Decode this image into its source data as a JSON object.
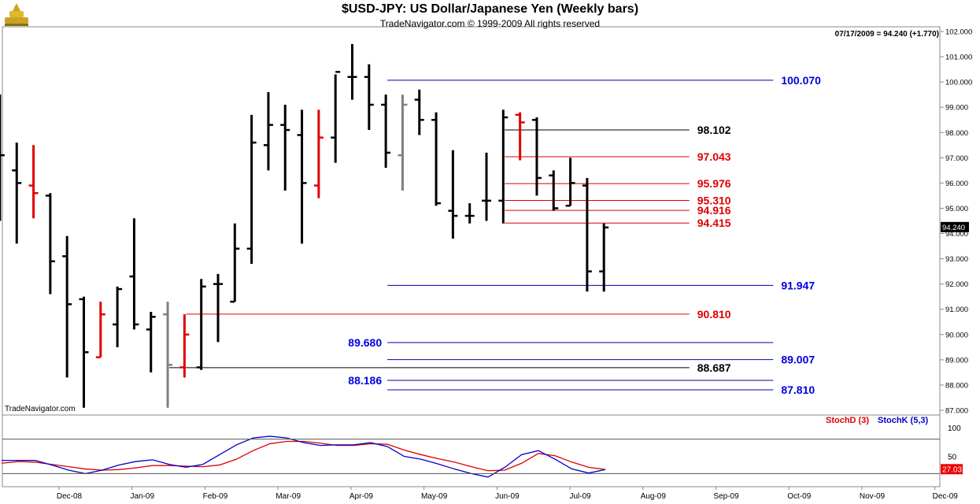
{
  "chart_data": [
    {
      "type": "ohlc",
      "title": "$USD-JPY:  US Dollar/Japanese Yen  (Weekly bars)",
      "subtitle": "TradeNavigator.com © 1999-2009 All rights reserved",
      "last_quote_text": "07/17/2009 = 94.240 (+1.770)",
      "last_price_label": "94.240",
      "watermark": "TradeNavigator.com",
      "ylim": [
        86.8,
        102.2
      ],
      "y_ticks": [
        "87.000",
        "88.000",
        "89.000",
        "90.000",
        "91.000",
        "92.000",
        "93.000",
        "94.000",
        "95.000",
        "96.000",
        "97.000",
        "98.000",
        "99.000",
        "100.000",
        "101.000",
        "102.000"
      ],
      "x_ticks": [
        "Dec-08",
        "Jan-09",
        "Feb-09",
        "Mar-09",
        "Apr-09",
        "May-09",
        "Jun-09",
        "Jul-09",
        "Aug-09",
        "Sep-09",
        "Oct-09",
        "Nov-09",
        "Dec-09"
      ],
      "colors": {
        "up": "#000000",
        "down_red": "#e00000",
        "gray": "#808080",
        "blue_level": "#0000aa",
        "red_level": "#dd0000",
        "black_level": "#000000"
      },
      "bars": [
        {
          "date": "2008-11-07",
          "o": 98.2,
          "h": 99.5,
          "l": 94.5,
          "c": 97.1,
          "color": "black"
        },
        {
          "date": "2008-11-14",
          "o": 96.5,
          "h": 97.6,
          "l": 93.6,
          "c": 96.0,
          "color": "black"
        },
        {
          "date": "2008-11-21",
          "o": 95.9,
          "h": 97.5,
          "l": 94.6,
          "c": 95.6,
          "color": "red"
        },
        {
          "date": "2008-11-28",
          "o": 95.5,
          "h": 95.6,
          "l": 91.6,
          "c": 92.9,
          "color": "black"
        },
        {
          "date": "2008-12-05",
          "o": 93.1,
          "h": 93.9,
          "l": 88.3,
          "c": 91.2,
          "color": "black"
        },
        {
          "date": "2008-12-12",
          "o": 91.4,
          "h": 91.5,
          "l": 87.1,
          "c": 89.3,
          "color": "black"
        },
        {
          "date": "2008-12-19",
          "o": 89.1,
          "h": 91.3,
          "l": 89.1,
          "c": 90.8,
          "color": "red"
        },
        {
          "date": "2008-12-26",
          "o": 90.4,
          "h": 91.9,
          "l": 89.5,
          "c": 91.8,
          "color": "black"
        },
        {
          "date": "2009-01-02",
          "o": 92.3,
          "h": 94.6,
          "l": 90.2,
          "c": 90.4,
          "color": "black"
        },
        {
          "date": "2009-01-09",
          "o": 90.2,
          "h": 90.9,
          "l": 88.5,
          "c": 90.7,
          "color": "black"
        },
        {
          "date": "2009-01-16",
          "o": 90.8,
          "h": 91.3,
          "l": 87.1,
          "c": 88.8,
          "color": "gray"
        },
        {
          "date": "2009-01-23",
          "o": 88.7,
          "h": 90.8,
          "l": 88.3,
          "c": 90.0,
          "color": "red"
        },
        {
          "date": "2009-01-30",
          "o": 88.7,
          "h": 92.2,
          "l": 88.6,
          "c": 91.9,
          "color": "black"
        },
        {
          "date": "2009-02-06",
          "o": 92.0,
          "h": 92.4,
          "l": 89.7,
          "c": 92.0,
          "color": "black"
        },
        {
          "date": "2009-02-13",
          "o": 91.3,
          "h": 94.4,
          "l": 91.3,
          "c": 93.4,
          "color": "black"
        },
        {
          "date": "2009-02-20",
          "o": 93.4,
          "h": 98.7,
          "l": 92.8,
          "c": 97.6,
          "color": "black"
        },
        {
          "date": "2009-02-27",
          "o": 97.5,
          "h": 99.6,
          "l": 96.5,
          "c": 98.3,
          "color": "black"
        },
        {
          "date": "2009-03-06",
          "o": 98.3,
          "h": 99.1,
          "l": 95.7,
          "c": 98.1,
          "color": "black"
        },
        {
          "date": "2009-03-13",
          "o": 97.9,
          "h": 98.9,
          "l": 93.6,
          "c": 96.0,
          "color": "black"
        },
        {
          "date": "2009-03-20",
          "o": 95.9,
          "h": 98.9,
          "l": 95.4,
          "c": 97.8,
          "color": "red"
        },
        {
          "date": "2009-03-27",
          "o": 97.8,
          "h": 100.3,
          "l": 96.8,
          "c": 100.4,
          "color": "black"
        },
        {
          "date": "2009-04-03",
          "o": 100.2,
          "h": 101.5,
          "l": 99.3,
          "c": 100.2,
          "color": "black"
        },
        {
          "date": "2009-04-10",
          "o": 100.2,
          "h": 100.7,
          "l": 98.1,
          "c": 99.1,
          "color": "black"
        },
        {
          "date": "2009-04-17",
          "o": 99.1,
          "h": 99.5,
          "l": 96.6,
          "c": 97.2,
          "color": "black"
        },
        {
          "date": "2009-04-24",
          "o": 97.1,
          "h": 99.5,
          "l": 95.7,
          "c": 99.1,
          "color": "gray"
        },
        {
          "date": "2009-05-01",
          "o": 99.3,
          "h": 99.7,
          "l": 97.9,
          "c": 98.5,
          "color": "black"
        },
        {
          "date": "2009-05-08",
          "o": 98.5,
          "h": 98.8,
          "l": 95.1,
          "c": 95.2,
          "color": "black"
        },
        {
          "date": "2009-05-15",
          "o": 94.9,
          "h": 97.3,
          "l": 93.8,
          "c": 94.7,
          "color": "black"
        },
        {
          "date": "2009-05-22",
          "o": 94.7,
          "h": 95.2,
          "l": 94.4,
          "c": 94.7,
          "color": "black"
        },
        {
          "date": "2009-05-29",
          "o": 95.3,
          "h": 97.2,
          "l": 94.5,
          "c": 95.3,
          "color": "black"
        },
        {
          "date": "2009-06-05",
          "o": 95.3,
          "h": 98.9,
          "l": 94.4,
          "c": 98.6,
          "color": "black"
        },
        {
          "date": "2009-06-12",
          "o": 98.7,
          "h": 98.8,
          "l": 96.9,
          "c": 98.4,
          "color": "red"
        },
        {
          "date": "2009-06-19",
          "o": 98.5,
          "h": 98.6,
          "l": 95.5,
          "c": 96.2,
          "color": "black"
        },
        {
          "date": "2009-06-26",
          "o": 96.3,
          "h": 96.5,
          "l": 94.9,
          "c": 95.0,
          "color": "black"
        },
        {
          "date": "2009-07-03",
          "o": 95.1,
          "h": 97.0,
          "l": 95.1,
          "c": 96.0,
          "color": "black"
        },
        {
          "date": "2009-07-10",
          "o": 95.9,
          "h": 96.2,
          "l": 91.7,
          "c": 92.5,
          "color": "black"
        },
        {
          "date": "2009-07-17",
          "o": 92.5,
          "h": 94.4,
          "l": 91.7,
          "c": 94.24,
          "color": "black"
        }
      ],
      "levels": [
        {
          "value": 100.07,
          "label": "100.070",
          "color": "blue",
          "from": "2009-04-17",
          "to": "2009-09-25",
          "label_side": "right"
        },
        {
          "value": 98.102,
          "label": "98.102",
          "color": "black",
          "from": "2009-06-05",
          "to": "2009-08-21",
          "label_side": "right"
        },
        {
          "value": 97.043,
          "label": "97.043",
          "color": "red",
          "from": "2009-06-05",
          "to": "2009-08-21",
          "label_side": "right"
        },
        {
          "value": 95.976,
          "label": "95.976",
          "color": "red",
          "from": "2009-06-05",
          "to": "2009-08-21",
          "label_side": "right"
        },
        {
          "value": 95.31,
          "label": "95.310",
          "color": "red",
          "from": "2009-06-05",
          "to": "2009-08-21",
          "label_side": "right"
        },
        {
          "value": 94.916,
          "label": "94.916",
          "color": "red",
          "from": "2009-06-05",
          "to": "2009-08-21",
          "label_side": "right"
        },
        {
          "value": 94.415,
          "label": "94.415",
          "color": "red",
          "from": "2009-06-05",
          "to": "2009-08-21",
          "label_side": "right"
        },
        {
          "value": 91.947,
          "label": "91.947",
          "color": "blue",
          "from": "2009-04-17",
          "to": "2009-09-25",
          "label_side": "right"
        },
        {
          "value": 90.81,
          "label": "90.810",
          "color": "red",
          "from": "2009-01-23",
          "to": "2009-08-21",
          "label_side": "right"
        },
        {
          "value": 89.68,
          "label": "89.680",
          "color": "blue",
          "from": "2009-04-17",
          "to": "2009-09-25",
          "label_side": "left"
        },
        {
          "value": 89.007,
          "label": "89.007",
          "color": "blue",
          "from": "2009-04-17",
          "to": "2009-09-25",
          "label_side": "right"
        },
        {
          "value": 88.687,
          "label": "88.687",
          "color": "black",
          "from": "2009-01-16",
          "to": "2009-08-21",
          "label_side": "right"
        },
        {
          "value": 88.186,
          "label": "88.186",
          "color": "blue",
          "from": "2009-04-17",
          "to": "2009-09-25",
          "label_side": "left"
        },
        {
          "value": 87.81,
          "label": "87.810",
          "color": "blue",
          "from": "2009-04-17",
          "to": "2009-09-25",
          "label_side": "right"
        }
      ]
    },
    {
      "type": "line",
      "stoch_d_label": "StochD (3)",
      "stoch_k_label": "StochK (5,3)",
      "last_value_label": "27.03",
      "ylim": [
        0,
        108
      ],
      "y_ticks": [
        "50",
        "100"
      ],
      "reference_lines": [
        80,
        20
      ],
      "x": [
        "2008-11-07",
        "2008-11-14",
        "2008-11-21",
        "2008-11-28",
        "2008-12-05",
        "2008-12-12",
        "2008-12-19",
        "2008-12-26",
        "2009-01-02",
        "2009-01-09",
        "2009-01-16",
        "2009-01-23",
        "2009-01-30",
        "2009-02-06",
        "2009-02-13",
        "2009-02-20",
        "2009-02-27",
        "2009-03-06",
        "2009-03-13",
        "2009-03-20",
        "2009-03-27",
        "2009-04-03",
        "2009-04-10",
        "2009-04-17",
        "2009-04-24",
        "2009-05-01",
        "2009-05-08",
        "2009-05-15",
        "2009-05-22",
        "2009-05-29",
        "2009-06-05",
        "2009-06-12",
        "2009-06-19",
        "2009-06-26",
        "2009-07-03",
        "2009-07-10",
        "2009-07-17"
      ],
      "series": [
        {
          "name": "StochD (3)",
          "color": "#dd0000",
          "values": [
            38,
            41,
            40,
            36,
            32,
            28,
            26,
            27,
            30,
            34,
            34,
            33,
            32,
            35,
            45,
            60,
            72,
            76,
            76,
            73,
            69,
            69,
            72,
            71,
            61,
            53,
            46,
            40,
            32,
            25,
            26,
            38,
            55,
            51,
            40,
            31,
            27
          ]
        },
        {
          "name": "StochK (5,3)",
          "color": "#0000cc",
          "values": [
            43,
            43,
            43,
            35,
            26,
            20,
            26,
            35,
            41,
            44,
            36,
            31,
            36,
            53,
            70,
            82,
            85,
            82,
            74,
            69,
            70,
            70,
            74,
            67,
            50,
            45,
            37,
            28,
            20,
            14,
            31,
            53,
            60,
            45,
            28,
            21,
            27
          ]
        }
      ]
    }
  ]
}
